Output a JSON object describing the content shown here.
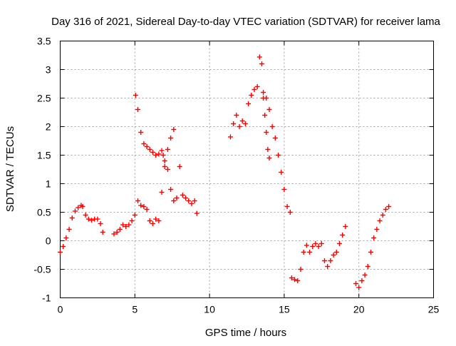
{
  "chart_data": {
    "type": "scatter",
    "title": "Day 316 of 2021, Sidereal Day-to-day VTEC variation (SDTVAR) for receiver lama",
    "xlabel": "GPS time / hours",
    "ylabel": "SDTVAR / TECUs",
    "xlim": [
      0,
      25
    ],
    "ylim": [
      -1,
      3.5
    ],
    "xticks": [
      "0",
      "5",
      "10",
      "15",
      "20",
      "25"
    ],
    "yticks": [
      "-1",
      "-0.5",
      "0",
      "0.5",
      "1",
      "1.5",
      "2",
      "2.5",
      "3",
      "3.5"
    ],
    "grid": true,
    "marker": "plus",
    "color": "#ff0000",
    "series": [
      {
        "x": [
          0.0,
          0.2,
          0.4,
          0.6,
          0.8,
          1.0,
          1.2,
          1.4,
          1.5,
          1.7,
          1.9,
          2.1,
          2.3,
          2.5,
          2.7,
          2.85
        ],
        "y": [
          -0.2,
          -0.1,
          0.05,
          0.2,
          0.4,
          0.52,
          0.58,
          0.62,
          0.6,
          0.45,
          0.38,
          0.36,
          0.38,
          0.38,
          0.3,
          0.15
        ]
      },
      {
        "x": [
          3.6,
          3.8,
          4.0,
          4.2,
          4.4,
          4.6,
          4.8,
          5.0,
          5.2,
          5.4,
          5.6,
          5.8,
          6.0,
          6.2,
          6.4,
          6.6,
          6.8,
          7.0,
          7.2,
          7.4,
          7.6,
          7.8,
          8.0,
          8.2,
          8.4,
          8.6,
          8.8,
          9.0,
          9.15
        ],
        "y": [
          0.12,
          0.15,
          0.2,
          0.28,
          0.25,
          0.28,
          0.35,
          0.45,
          0.7,
          0.62,
          0.6,
          0.55,
          0.35,
          0.3,
          0.38,
          0.35,
          0.85,
          1.4,
          1.25,
          0.9,
          0.7,
          0.75,
          1.3,
          0.8,
          0.75,
          0.7,
          0.65,
          0.7,
          0.48
        ]
      },
      {
        "x": [
          5.05,
          5.2,
          5.4,
          5.6,
          5.8,
          6.0,
          6.2,
          6.4,
          6.6,
          6.8,
          6.9,
          7.0,
          7.2,
          7.4,
          7.6
        ],
        "y": [
          2.55,
          2.3,
          1.9,
          1.7,
          1.65,
          1.6,
          1.55,
          1.5,
          1.52,
          1.58,
          1.5,
          1.3,
          1.6,
          1.8,
          1.95
        ]
      },
      {
        "x": [
          11.4,
          11.6,
          11.8,
          12.0,
          12.2,
          12.4,
          12.6,
          12.8,
          13.0,
          13.2,
          13.35,
          13.5,
          13.6,
          13.8,
          14.0,
          14.2,
          14.4,
          14.6,
          14.8,
          15.0,
          15.2,
          15.4
        ],
        "y": [
          1.82,
          2.05,
          2.2,
          2.0,
          2.1,
          2.05,
          2.4,
          2.55,
          2.65,
          2.7,
          3.22,
          3.1,
          2.6,
          2.5,
          2.3,
          2.0,
          1.8,
          1.5,
          1.2,
          0.9,
          0.6,
          0.5
        ]
      },
      {
        "x": [
          13.6,
          13.7,
          13.8,
          13.9,
          14.0
        ],
        "y": [
          2.5,
          2.2,
          1.9,
          1.6,
          1.45
        ]
      },
      {
        "x": [
          15.5,
          15.7,
          15.9,
          16.1,
          16.3,
          16.5,
          16.7,
          16.9,
          17.1,
          17.3,
          17.5,
          17.7,
          17.9,
          18.1,
          18.3,
          18.5,
          18.7,
          18.9,
          19.1
        ],
        "y": [
          -0.65,
          -0.68,
          -0.7,
          -0.5,
          -0.2,
          -0.08,
          -0.2,
          -0.1,
          -0.05,
          -0.1,
          -0.05,
          -0.35,
          -0.45,
          -0.35,
          -0.25,
          -0.2,
          -0.05,
          0.1,
          0.25
        ]
      },
      {
        "x": [
          19.8,
          20.0,
          20.2,
          20.4,
          20.6,
          20.8,
          21.0,
          21.2,
          21.4,
          21.6,
          21.8,
          22.0
        ],
        "y": [
          -0.75,
          -0.82,
          -0.7,
          -0.6,
          -0.45,
          -0.2,
          0.05,
          0.2,
          0.35,
          0.45,
          0.55,
          0.6
        ]
      }
    ]
  }
}
